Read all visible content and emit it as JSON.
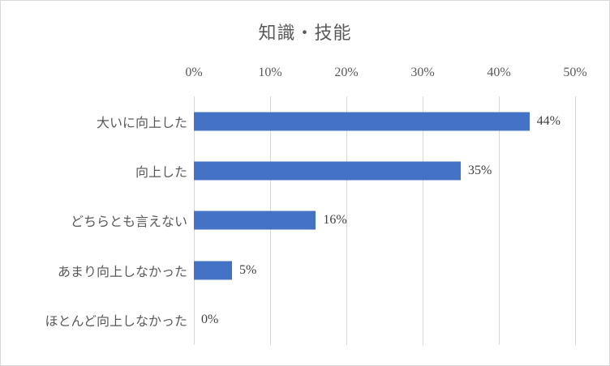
{
  "chart": {
    "title": "知識・技能",
    "bar_color": "#4472c4",
    "gridline_color": "#d9d9d9",
    "frame_border_color": "#d9d9d9",
    "axis_text_color": "#595959",
    "data_label_color": "#404040"
  },
  "chart_data": {
    "type": "bar",
    "orientation": "horizontal",
    "title": "知識・技能",
    "categories": [
      "大いに向上した",
      "向上した",
      "どちらとも言えない",
      "あまり向上しなかった",
      "ほとんど向上しなかった"
    ],
    "values": [
      44,
      35,
      16,
      5,
      0
    ],
    "data_labels": [
      "44%",
      "35%",
      "16%",
      "5%",
      "0%"
    ],
    "x_ticks": [
      "0%",
      "10%",
      "20%",
      "30%",
      "40%",
      "50%"
    ],
    "xlabel": "",
    "ylabel": "",
    "xlim": [
      0,
      50
    ],
    "axis_position": "top",
    "grid": true,
    "legend": false
  }
}
